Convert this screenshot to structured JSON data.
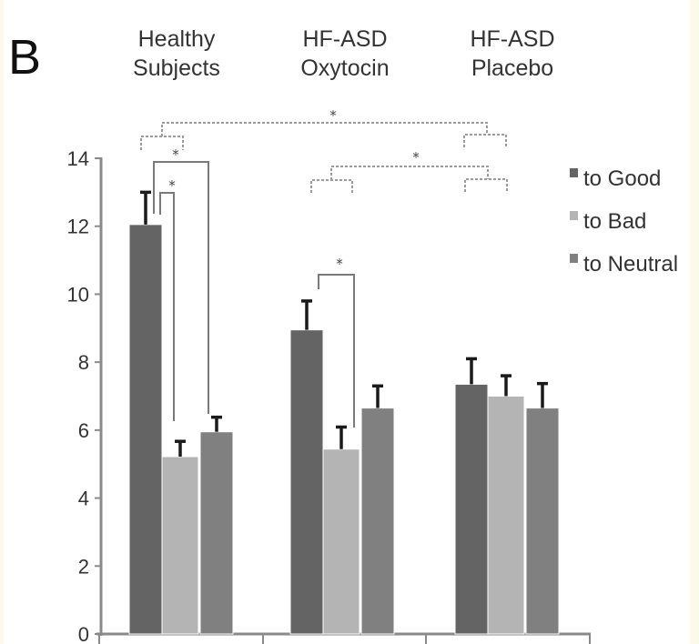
{
  "chart_data": {
    "type": "bar",
    "panel_label": "B",
    "title": "",
    "xlabel": "",
    "ylabel": "",
    "ylim": [
      0,
      14
    ],
    "yticks": [
      "0",
      "2",
      "4",
      "6",
      "8",
      "10",
      "12",
      "14"
    ],
    "grid": false,
    "legend_position": "right",
    "categories": [
      "Healthy Subjects",
      "HF-ASD Oxytocin",
      "HF-ASD Placebo"
    ],
    "category_lines": [
      [
        "Healthy",
        "Subjects"
      ],
      [
        "HF-ASD",
        "Oxytocin"
      ],
      [
        "HF-ASD",
        "Placebo"
      ]
    ],
    "series": [
      {
        "name": "to Good",
        "color": "#646464",
        "values": [
          12.05,
          8.95,
          7.35
        ],
        "errors": [
          0.95,
          0.85,
          0.75
        ]
      },
      {
        "name": "to Bad",
        "color": "#b4b4b4",
        "values": [
          5.22,
          5.44,
          7.0
        ],
        "errors": [
          0.45,
          0.65,
          0.6
        ]
      },
      {
        "name": "to Neutral",
        "color": "#808080",
        "values": [
          5.95,
          6.65,
          6.65
        ],
        "errors": [
          0.43,
          0.65,
          0.72
        ]
      }
    ],
    "significance": [
      {
        "type": "solid",
        "between": [
          "Healthy Subjects / to Good",
          "Healthy Subjects / to Bad"
        ],
        "label": "*"
      },
      {
        "type": "solid",
        "between": [
          "Healthy Subjects / to Good",
          "Healthy Subjects / to Neutral"
        ],
        "label": "*"
      },
      {
        "type": "solid",
        "between": [
          "HF-ASD Oxytocin / to Good",
          "HF-ASD Oxytocin / to Bad"
        ],
        "label": "*"
      },
      {
        "type": "dashed",
        "between": [
          "Healthy Subjects (to Good vs to Bad)",
          "HF-ASD Placebo (to Good vs to Bad)"
        ],
        "label": "*"
      },
      {
        "type": "dashed",
        "between": [
          "HF-ASD Oxytocin (to Good vs to Bad)",
          "HF-ASD Placebo (to Good vs to Bad)"
        ],
        "label": "*"
      }
    ]
  }
}
